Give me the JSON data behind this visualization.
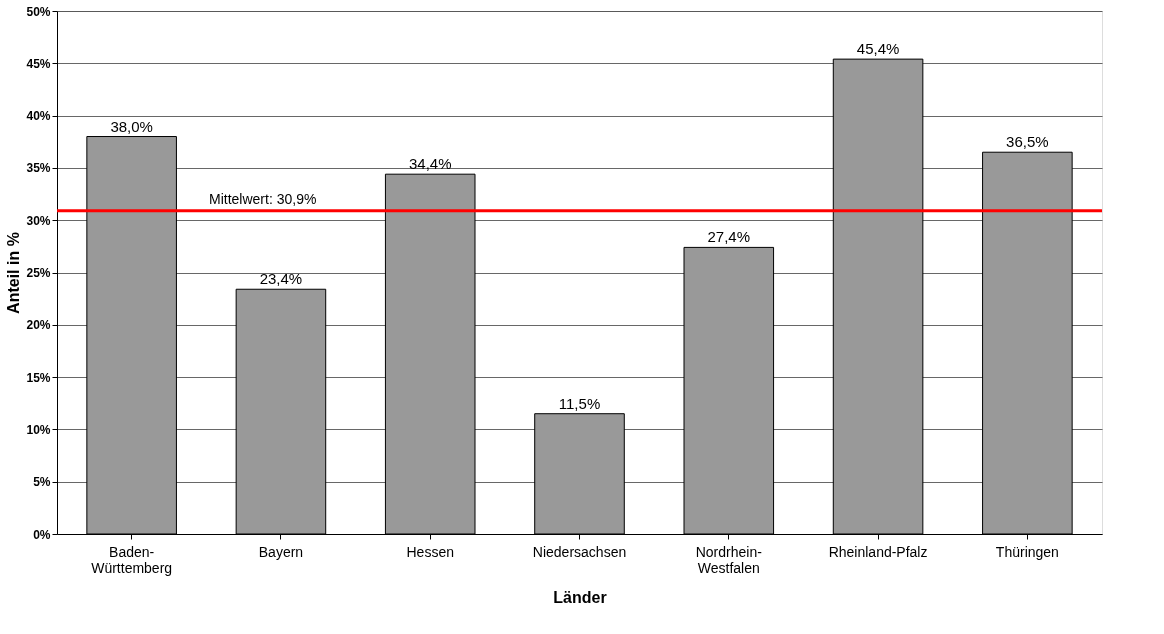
{
  "chart_data": {
    "type": "bar",
    "categories": [
      "Baden-\nWürttemberg",
      "Bayern",
      "Hessen",
      "Niedersachsen",
      "Nordrhein-\nWestfalen",
      "Rheinland-Pfalz",
      "Thüringen"
    ],
    "values": [
      38.0,
      23.4,
      34.4,
      11.5,
      27.4,
      45.4,
      36.5
    ],
    "value_labels": [
      "38,0%",
      "23,4%",
      "34,4%",
      "11,5%",
      "27,4%",
      "45,4%",
      "36,5%"
    ],
    "color": "#999999",
    "xlabel": "Länder",
    "ylabel": "Anteil in %",
    "ylim": [
      0,
      50
    ],
    "yticks": [
      {
        "value": 0,
        "label": "0%"
      },
      {
        "value": 5,
        "label": "5%"
      },
      {
        "value": 10,
        "label": "10%"
      },
      {
        "value": 15,
        "label": "15%"
      },
      {
        "value": 20,
        "label": "20%"
      },
      {
        "value": 25,
        "label": "25%"
      },
      {
        "value": 30,
        "label": "30%"
      },
      {
        "value": 35,
        "label": "35%"
      },
      {
        "value": 40,
        "label": "40%"
      },
      {
        "value": 45,
        "label": "45%"
      },
      {
        "value": 50,
        "label": "50%"
      }
    ],
    "grid": "y",
    "ref_lines": [
      {
        "axis": "y",
        "value": 30.9,
        "label": "Mittelwert: 30,9%",
        "color": "#ff0000"
      }
    ]
  }
}
